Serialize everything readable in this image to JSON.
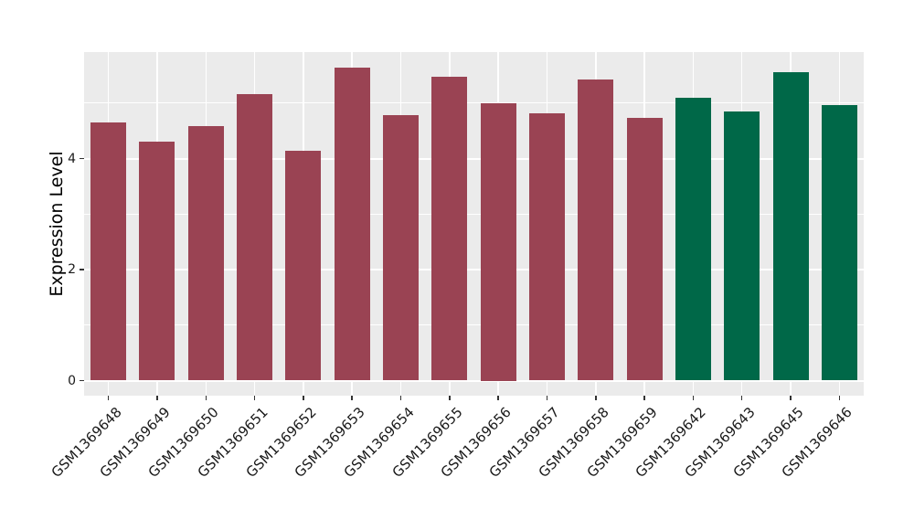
{
  "chart_data": {
    "type": "bar",
    "title": "",
    "xlabel": "",
    "ylabel": "Expression Level",
    "categories": [
      "GSM1369648",
      "GSM1369649",
      "GSM1369650",
      "GSM1369651",
      "GSM1369652",
      "GSM1369653",
      "GSM1369654",
      "GSM1369655",
      "GSM1369656",
      "GSM1369657",
      "GSM1369658",
      "GSM1369659",
      "GSM1369642",
      "GSM1369643",
      "GSM1369645",
      "GSM1369646"
    ],
    "values": [
      4.65,
      4.3,
      4.58,
      5.16,
      4.14,
      5.63,
      4.79,
      5.47,
      5.0,
      4.82,
      5.43,
      4.73,
      5.09,
      4.85,
      5.55,
      4.96
    ],
    "bar_groups": [
      "group1",
      "group1",
      "group1",
      "group1",
      "group1",
      "group1",
      "group1",
      "group1",
      "group1",
      "group1",
      "group1",
      "group1",
      "group2",
      "group2",
      "group2",
      "group2"
    ],
    "group_colors": {
      "group1": "#9A4353",
      "group2": "#006848"
    },
    "yticks_major": [
      0,
      2,
      4
    ],
    "yticks_minor": [
      1,
      3,
      5
    ],
    "ylim": [
      -0.3,
      5.92
    ],
    "x_label_rotation_deg": 45,
    "legend": "none",
    "grid": "on",
    "panel_background": "#EBEBEB",
    "gridline_color": "#FFFFFF"
  }
}
